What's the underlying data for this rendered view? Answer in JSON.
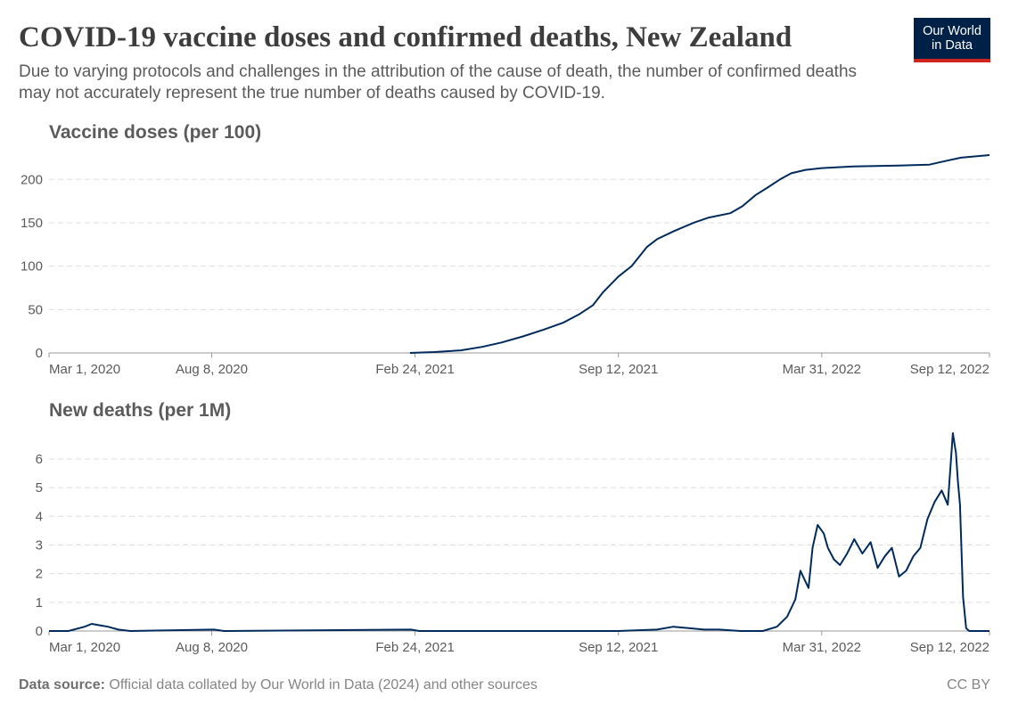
{
  "header": {
    "title": "COVID-19 vaccine doses and confirmed deaths, New Zealand",
    "subtitle": "Due to varying protocols and challenges in the attribution of the cause of death, the number of confirmed deaths may not accurately represent the true number of deaths caused by COVID-19.",
    "logo_line1": "Our World",
    "logo_line2": "in Data"
  },
  "footer": {
    "source_label": "Data source:",
    "source_text": "Official data collated by Our World in Data (2024) and other sources",
    "license": "CC BY"
  },
  "colors": {
    "line": "#002b5c",
    "grid": "#dddddd",
    "axis": "#999999"
  },
  "chart_data": [
    {
      "type": "line",
      "title": "Vaccine doses (per 100)",
      "x_ticks": [
        "Mar 1, 2020",
        "Aug 8, 2020",
        "Feb 24, 2021",
        "Sep 12, 2021",
        "Mar 31, 2022",
        "Sep 12, 2022"
      ],
      "x_range": [
        "2020-03-01",
        "2022-09-12"
      ],
      "y_ticks": [
        0,
        50,
        100,
        150,
        200
      ],
      "ylim": [
        0,
        228
      ],
      "grid": true,
      "series": [
        {
          "x": [
            "2021-02-19",
            "2021-03-15",
            "2021-04-10",
            "2021-05-01",
            "2021-05-20",
            "2021-06-10",
            "2021-07-01",
            "2021-07-20",
            "2021-08-05",
            "2021-08-18",
            "2021-08-28",
            "2021-09-12",
            "2021-09-25",
            "2021-10-10",
            "2021-10-20",
            "2021-11-05",
            "2021-11-25",
            "2021-12-10",
            "2021-12-31",
            "2022-01-12",
            "2022-01-25",
            "2022-02-05",
            "2022-02-18",
            "2022-03-01",
            "2022-03-15",
            "2022-03-31",
            "2022-05-01",
            "2022-06-15",
            "2022-07-15",
            "2022-07-30",
            "2022-08-15",
            "2022-09-12"
          ],
          "y": [
            0,
            1,
            3,
            7,
            12,
            19,
            27,
            35,
            45,
            55,
            70,
            88,
            100,
            122,
            131,
            140,
            150,
            156,
            161,
            169,
            182,
            190,
            200,
            207,
            211,
            213,
            215,
            216,
            217,
            221,
            225,
            228
          ]
        }
      ]
    },
    {
      "type": "line",
      "title": "New deaths (per 1M)",
      "x_ticks": [
        "Mar 1, 2020",
        "Aug 8, 2020",
        "Feb 24, 2021",
        "Sep 12, 2021",
        "Mar 31, 2022",
        "Sep 12, 2022"
      ],
      "x_range": [
        "2020-03-01",
        "2022-09-12"
      ],
      "y_ticks": [
        0,
        1,
        2,
        3,
        4,
        5,
        6
      ],
      "ylim": [
        0,
        6.9
      ],
      "grid": true,
      "series": [
        {
          "x": [
            "2020-03-01",
            "2020-03-20",
            "2020-04-05",
            "2020-04-12",
            "2020-04-20",
            "2020-04-28",
            "2020-05-08",
            "2020-05-20",
            "2020-08-10",
            "2020-08-20",
            "2021-02-20",
            "2021-02-28",
            "2021-09-12",
            "2021-10-20",
            "2021-11-05",
            "2021-11-20",
            "2021-12-05",
            "2021-12-20",
            "2022-01-10",
            "2022-02-01",
            "2022-02-15",
            "2022-02-25",
            "2022-03-05",
            "2022-03-10",
            "2022-03-14",
            "2022-03-18",
            "2022-03-22",
            "2022-03-27",
            "2022-04-02",
            "2022-04-06",
            "2022-04-12",
            "2022-04-18",
            "2022-04-25",
            "2022-05-02",
            "2022-05-10",
            "2022-05-18",
            "2022-05-25",
            "2022-06-01",
            "2022-06-08",
            "2022-06-15",
            "2022-06-22",
            "2022-06-29",
            "2022-07-06",
            "2022-07-13",
            "2022-07-20",
            "2022-07-27",
            "2022-08-02",
            "2022-08-07",
            "2022-08-10",
            "2022-08-12",
            "2022-08-14",
            "2022-08-17",
            "2022-08-20",
            "2022-08-23",
            "2022-09-12"
          ],
          "y": [
            0,
            0,
            0.15,
            0.25,
            0.2,
            0.15,
            0.05,
            0,
            0.05,
            0,
            0.05,
            0,
            0,
            0.05,
            0.15,
            0.1,
            0.05,
            0.05,
            0,
            0,
            0.15,
            0.5,
            1.1,
            2.1,
            1.8,
            1.5,
            2.9,
            3.7,
            3.4,
            2.9,
            2.5,
            2.3,
            2.7,
            3.2,
            2.7,
            3.1,
            2.2,
            2.6,
            2.9,
            1.9,
            2.1,
            2.6,
            2.9,
            3.9,
            4.5,
            4.9,
            4.4,
            6.9,
            6.2,
            5.2,
            4.4,
            1.2,
            0.1,
            0,
            0
          ]
        }
      ]
    }
  ]
}
